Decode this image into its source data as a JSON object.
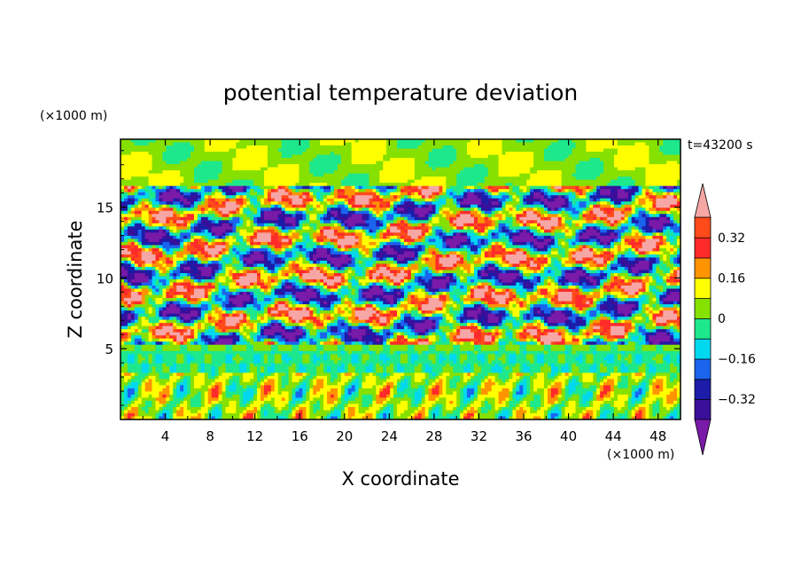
{
  "chart_data": {
    "type": "heatmap",
    "title": "potential temperature deviation",
    "xlabel": "X coordinate",
    "ylabel": "Z coordinate",
    "x_unit_label": "(×1000 m)",
    "y_unit_label": "(×1000 m)",
    "time_label": "t=43200 s",
    "xlim": [
      0,
      50
    ],
    "ylim": [
      0,
      19.8
    ],
    "x_ticks": [
      4,
      8,
      12,
      16,
      20,
      24,
      28,
      32,
      36,
      40,
      44,
      48
    ],
    "y_ticks": [
      5,
      10,
      15
    ],
    "x_tick_labels": [
      "4",
      "8",
      "12",
      "16",
      "20",
      "24",
      "28",
      "32",
      "36",
      "40",
      "44",
      "48"
    ],
    "y_tick_labels": [
      "5",
      "10",
      "15"
    ],
    "levels": [
      -0.4,
      -0.32,
      -0.24,
      -0.16,
      -0.08,
      0,
      0.08,
      0.16,
      0.24,
      0.32,
      0.4
    ],
    "colorbar_tick_labels": [
      "0.32",
      "0.16",
      "0",
      "−0.16",
      "−0.32"
    ],
    "colorbar_tick_values": [
      0.32,
      0.16,
      0,
      -0.16,
      -0.32
    ],
    "colors": {
      "below": "#7a1aa8",
      "bins": [
        "#3a0f9a",
        "#1c1ca8",
        "#1a64ee",
        "#00d8f0",
        "#1ee88c",
        "#86e000",
        "#ffff00",
        "#ff9400",
        "#ff2a2a",
        "#ff4a1a"
      ],
      "above": "#f7a6a6"
    }
  }
}
